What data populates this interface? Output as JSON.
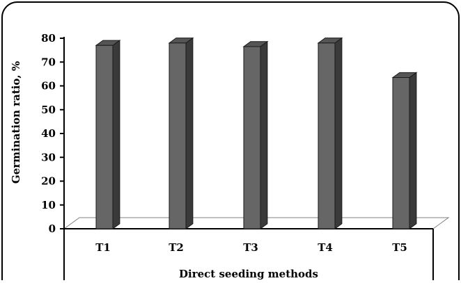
{
  "chart_data": {
    "type": "bar",
    "title": "",
    "xlabel": "Direct seeding methods",
    "ylabel": "Germination ratio, %",
    "categories": [
      "T1",
      "T2",
      "T3",
      "T4",
      "T5"
    ],
    "values": [
      77,
      78,
      76.5,
      78,
      63.5
    ],
    "ylim": [
      0,
      80
    ],
    "yticks": [
      0,
      10,
      20,
      30,
      40,
      50,
      60,
      70,
      80
    ],
    "yticks_labels": [
      "0",
      "10",
      "20",
      "30",
      "40",
      "50",
      "60",
      "70",
      "80"
    ],
    "grid": false,
    "legend": "none",
    "bar_3d": true,
    "colors": {
      "bar_front": "#666666",
      "bar_side": "#3a3a3a",
      "bar_top": "#555555",
      "axis": "#000000",
      "floor": "#808080",
      "frame": "#000000"
    }
  }
}
